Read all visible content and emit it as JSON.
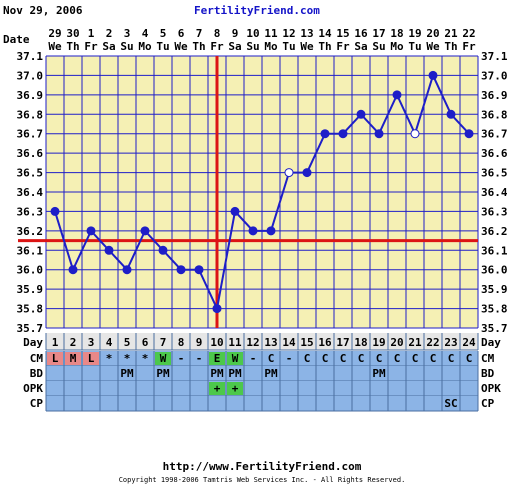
{
  "header": {
    "date": "Nov 29, 2006",
    "site": "FertilityFriend.com"
  },
  "footer": {
    "url": "http://www.FertilityFriend.com",
    "copyright": "Copyright 1998-2006 Tamtris Web Services Inc. - All Rights Reserved."
  },
  "chart_data": {
    "type": "line",
    "row_labels": {
      "date": "Date",
      "day": "Day",
      "cm": "CM",
      "bd": "BD",
      "opk": "OPK",
      "cp": "CP"
    },
    "dates": [
      "29",
      "30",
      "1",
      "2",
      "3",
      "4",
      "5",
      "6",
      "7",
      "8",
      "9",
      "10",
      "11",
      "12",
      "13",
      "14",
      "15",
      "16",
      "17",
      "18",
      "19",
      "20",
      "21",
      "22"
    ],
    "weekdays": [
      "We",
      "Th",
      "Fr",
      "Sa",
      "Su",
      "Mo",
      "Tu",
      "We",
      "Th",
      "Fr",
      "Sa",
      "Su",
      "Mo",
      "Tu",
      "We",
      "Th",
      "Fr",
      "Sa",
      "Su",
      "Mo",
      "Tu",
      "We",
      "Th",
      "Fr"
    ],
    "days": [
      "1",
      "2",
      "3",
      "4",
      "5",
      "6",
      "7",
      "8",
      "9",
      "10",
      "11",
      "12",
      "13",
      "14",
      "15",
      "16",
      "17",
      "18",
      "19",
      "20",
      "21",
      "22",
      "23",
      "24"
    ],
    "temperatures": [
      36.3,
      36.0,
      36.2,
      36.1,
      36.0,
      36.2,
      36.1,
      36.0,
      36.0,
      35.8,
      36.3,
      36.2,
      36.2,
      36.5,
      36.5,
      36.7,
      36.7,
      36.8,
      36.7,
      36.9,
      36.7,
      37.0,
      36.8,
      36.7
    ],
    "open_points": [
      14,
      21
    ],
    "yticks": [
      "37.1",
      "37.0",
      "36.9",
      "36.8",
      "36.7",
      "36.6",
      "36.5",
      "36.4",
      "36.3",
      "36.2",
      "36.1",
      "36.0",
      "35.9",
      "35.8",
      "35.7"
    ],
    "ylim": [
      35.7,
      37.1
    ],
    "coverline": 36.15,
    "ovulation_day": 10,
    "cm": [
      "L",
      "M",
      "L",
      "*",
      "*",
      "*",
      "W",
      "-",
      "-",
      "E",
      "W",
      "-",
      "C",
      "-",
      "C",
      "C",
      "C",
      "C",
      "C",
      "C",
      "C",
      "C",
      "C",
      "C"
    ],
    "bd": [
      "",
      "",
      "",
      "",
      "PM",
      "",
      "PM",
      "",
      "",
      "PM",
      "PM",
      "",
      "PM",
      "",
      "",
      "",
      "",
      "",
      "PM",
      "",
      "",
      "",
      "",
      ""
    ],
    "opk": [
      "",
      "",
      "",
      "",
      "",
      "",
      "",
      "",
      "",
      "+",
      "+",
      "",
      "",
      "",
      "",
      "",
      "",
      "",
      "",
      "",
      "",
      "",
      "",
      ""
    ],
    "cp": [
      "",
      "",
      "",
      "",
      "",
      "",
      "",
      "",
      "",
      "",
      "",
      "",
      "",
      "",
      "",
      "",
      "",
      "",
      "",
      "",
      "",
      "",
      "SC",
      ""
    ],
    "colors": {
      "plot_bg": "#f5f0b4",
      "grid": "#1e1ec8",
      "line": "#1e1ec8",
      "coverline": "#dc1414",
      "cm_L": "#e88888",
      "cm_M": "#e88888",
      "cm_W": "#4cc84c",
      "cm_E": "#4cc84c",
      "opk_positive": "#4cc84c",
      "row_bg": "#8cb4e6",
      "day_bg": "#e6e6e6"
    }
  }
}
